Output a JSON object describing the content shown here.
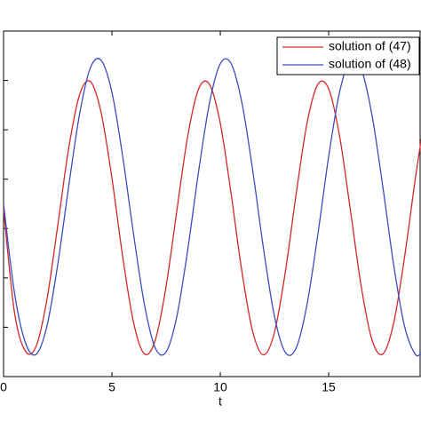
{
  "chart_data": {
    "type": "line",
    "xlabel": "t",
    "x": [
      0,
      0.5,
      1,
      1.5,
      2,
      2.5,
      3,
      3.5,
      4,
      4.5,
      5,
      5.5,
      6,
      6.5,
      7,
      7.5,
      8,
      8.5,
      9,
      9.5,
      10,
      10.5,
      11,
      11.5,
      12,
      12.5,
      13,
      13.5,
      14,
      14.5,
      15,
      15.5,
      16,
      16.5,
      17,
      17.5,
      18,
      18.5,
      19,
      19.3
    ],
    "xlim": [
      0,
      19.3
    ],
    "xticks": [
      0,
      5,
      10,
      15
    ],
    "ylim": [
      0,
      7
    ],
    "yticks": [
      1,
      2,
      3,
      4,
      5,
      6
    ],
    "legend": "upper right",
    "series": [
      {
        "name": "solution of (47)",
        "color": "#d62728",
        "values": [
          3.4,
          1.31,
          0.52,
          0.61,
          1.56,
          3.06,
          4.61,
          5.7,
          5.98,
          5.35,
          4.02,
          2.42,
          1.09,
          0.46,
          0.74,
          1.83,
          3.38,
          4.88,
          5.83,
          5.92,
          5.13,
          3.7,
          2.12,
          0.9,
          0.44,
          0.9,
          2.12,
          3.7,
          5.13,
          5.92,
          5.83,
          4.88,
          3.38,
          1.83,
          0.74,
          0.46,
          1.09,
          2.42,
          4.02,
          4.88
        ]
      },
      {
        "name": "solution of (48)",
        "color": "#3b4cc0",
        "values": [
          3.5,
          1.71,
          0.7,
          0.45,
          1.02,
          2.27,
          3.84,
          5.3,
          6.25,
          6.41,
          5.76,
          4.45,
          2.88,
          1.46,
          0.58,
          0.5,
          1.23,
          2.58,
          4.16,
          5.54,
          6.34,
          6.34,
          5.54,
          4.16,
          2.57,
          1.22,
          0.49,
          0.58,
          1.46,
          2.88,
          4.46,
          5.76,
          6.41,
          6.24,
          5.29,
          3.84,
          2.26,
          1.02,
          0.45,
          0.5
        ]
      }
    ]
  }
}
